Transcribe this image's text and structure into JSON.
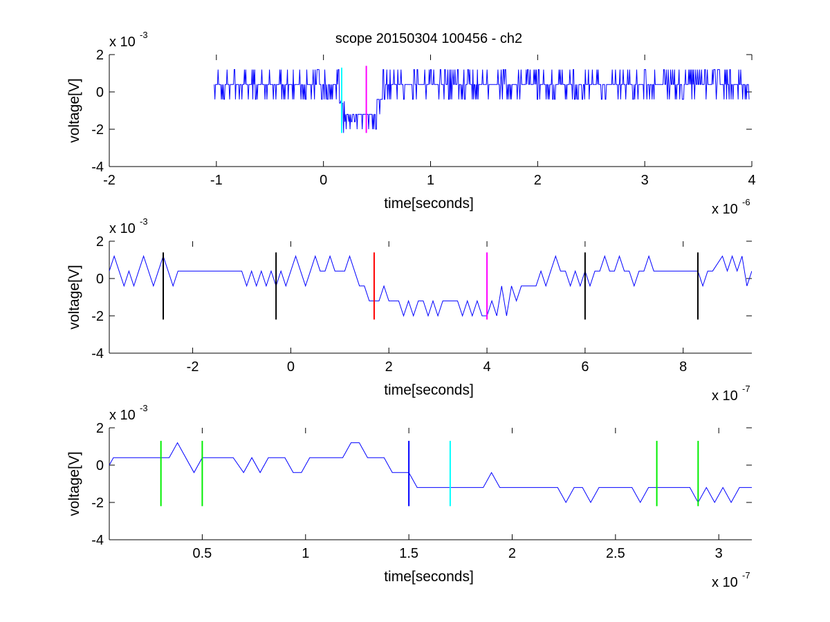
{
  "figure": {
    "title": "scope 20150304 100456 - ch2"
  },
  "chart_data": [
    {
      "type": "line",
      "title": "scope 20150304 100456 - ch2",
      "xlabel": "time[seconds]",
      "ylabel": "voltage[V]",
      "x_multiplier": "x 10",
      "x_exponent": "-6",
      "y_multiplier": "x 10",
      "y_exponent": "-3",
      "xlim": [
        -2,
        4
      ],
      "ylim": [
        -4,
        2
      ],
      "xticks": [
        -2,
        -1,
        0,
        1,
        2,
        3,
        4
      ],
      "xtick_labels": [
        "-2",
        "-1",
        "0",
        "1",
        "2",
        "3",
        "4"
      ],
      "yticks": [
        -4,
        -2,
        0,
        2
      ],
      "ytick_labels": [
        "-4",
        "-2",
        "0",
        "2"
      ],
      "series": [
        {
          "color": "#0000ff",
          "x_range": [
            -1.02,
            3.98
          ],
          "baseline": 0.4,
          "segments": [
            {
              "x": [
                -1.02,
                0.15
              ],
              "level": 0.4,
              "jitter": [
                -0.4,
                1.2
              ]
            },
            {
              "x": [
                0.15,
                0.2
              ],
              "level": -0.6,
              "jitter": [
                -2.2,
                1.2
              ]
            },
            {
              "x": [
                0.2,
                0.5
              ],
              "level": -1.2,
              "jitter": [
                -2.0,
                -1.2
              ]
            },
            {
              "x": [
                0.5,
                0.55
              ],
              "level": -0.4,
              "jitter": [
                -1.2,
                0.4
              ]
            },
            {
              "x": [
                0.55,
                3.98
              ],
              "level": 0.4,
              "jitter": [
                -0.4,
                1.2
              ]
            }
          ]
        }
      ],
      "markers": [
        {
          "x": 0.17,
          "y": [
            -2.2,
            1.3
          ],
          "color": "#00ffff"
        },
        {
          "x": 0.4,
          "y": [
            -2.2,
            1.4
          ],
          "color": "#ff00ff"
        }
      ]
    },
    {
      "type": "line",
      "xlabel": "time[seconds]",
      "ylabel": "voltage[V]",
      "x_multiplier": "x 10",
      "x_exponent": "-7",
      "y_multiplier": "x 10",
      "y_exponent": "-3",
      "xlim": [
        -3.7,
        9.4
      ],
      "ylim": [
        -4,
        2
      ],
      "xticks": [
        -2,
        0,
        2,
        4,
        6,
        8
      ],
      "xtick_labels": [
        "-2",
        "0",
        "2",
        "4",
        "6",
        "8"
      ],
      "yticks": [
        -4,
        -2,
        0,
        2
      ],
      "ytick_labels": [
        "-4",
        "-2",
        "0",
        "2"
      ],
      "series": [
        {
          "color": "#0000ff",
          "points": [
            [
              -3.7,
              0.4
            ],
            [
              -3.6,
              1.2
            ],
            [
              -3.5,
              0.4
            ],
            [
              -3.4,
              -0.4
            ],
            [
              -3.3,
              0.4
            ],
            [
              -3.2,
              -0.4
            ],
            [
              -3.1,
              0.4
            ],
            [
              -3.0,
              1.2
            ],
            [
              -2.9,
              0.4
            ],
            [
              -2.8,
              -0.4
            ],
            [
              -2.7,
              0.4
            ],
            [
              -2.6,
              1.2
            ],
            [
              -2.5,
              0.4
            ],
            [
              -2.4,
              -0.4
            ],
            [
              -2.3,
              0.4
            ],
            [
              -2.2,
              0.4
            ],
            [
              -1.0,
              0.4
            ],
            [
              -0.9,
              -0.4
            ],
            [
              -0.8,
              0.4
            ],
            [
              -0.7,
              -0.4
            ],
            [
              -0.6,
              0.4
            ],
            [
              -0.5,
              -0.4
            ],
            [
              -0.4,
              0.4
            ],
            [
              -0.3,
              -0.4
            ],
            [
              -0.2,
              0.4
            ],
            [
              -0.1,
              -0.4
            ],
            [
              0.0,
              0.4
            ],
            [
              0.1,
              1.2
            ],
            [
              0.2,
              0.4
            ],
            [
              0.3,
              -0.4
            ],
            [
              0.4,
              0.4
            ],
            [
              0.5,
              1.2
            ],
            [
              0.6,
              0.4
            ],
            [
              0.7,
              0.4
            ],
            [
              0.8,
              1.2
            ],
            [
              0.9,
              0.4
            ],
            [
              1.0,
              0.4
            ],
            [
              1.1,
              0.4
            ],
            [
              1.2,
              1.2
            ],
            [
              1.3,
              0.4
            ],
            [
              1.4,
              -0.4
            ],
            [
              1.5,
              -0.4
            ],
            [
              1.6,
              -1.2
            ],
            [
              1.7,
              -1.2
            ],
            [
              1.8,
              -1.2
            ],
            [
              1.9,
              -0.4
            ],
            [
              2.0,
              -1.2
            ],
            [
              2.1,
              -1.2
            ],
            [
              2.2,
              -1.2
            ],
            [
              2.3,
              -2.0
            ],
            [
              2.4,
              -1.2
            ],
            [
              2.5,
              -2.0
            ],
            [
              2.6,
              -1.2
            ],
            [
              2.7,
              -1.2
            ],
            [
              2.8,
              -2.0
            ],
            [
              2.9,
              -1.2
            ],
            [
              3.0,
              -2.0
            ],
            [
              3.1,
              -1.2
            ],
            [
              3.2,
              -1.2
            ],
            [
              3.3,
              -1.2
            ],
            [
              3.4,
              -1.2
            ],
            [
              3.5,
              -2.0
            ],
            [
              3.6,
              -1.2
            ],
            [
              3.7,
              -2.0
            ],
            [
              3.8,
              -1.2
            ],
            [
              3.9,
              -2.0
            ],
            [
              4.0,
              -2.0
            ],
            [
              4.1,
              -1.2
            ],
            [
              4.2,
              -2.0
            ],
            [
              4.3,
              -0.4
            ],
            [
              4.4,
              -2.0
            ],
            [
              4.5,
              -0.4
            ],
            [
              4.6,
              -1.2
            ],
            [
              4.7,
              -0.4
            ],
            [
              4.8,
              -0.4
            ],
            [
              4.9,
              -0.4
            ],
            [
              5.0,
              -0.4
            ],
            [
              5.1,
              0.4
            ],
            [
              5.2,
              -0.4
            ],
            [
              5.3,
              0.4
            ],
            [
              5.4,
              1.2
            ],
            [
              5.5,
              0.4
            ],
            [
              5.6,
              0.4
            ],
            [
              5.7,
              -0.4
            ],
            [
              5.8,
              0.4
            ],
            [
              5.9,
              -0.4
            ],
            [
              6.0,
              0.4
            ],
            [
              6.1,
              -0.4
            ],
            [
              6.2,
              0.4
            ],
            [
              6.3,
              0.4
            ],
            [
              6.4,
              1.2
            ],
            [
              6.5,
              0.4
            ],
            [
              6.6,
              0.4
            ],
            [
              6.7,
              1.2
            ],
            [
              6.8,
              0.4
            ],
            [
              6.9,
              0.4
            ],
            [
              7.0,
              -0.4
            ],
            [
              7.1,
              0.4
            ],
            [
              7.2,
              0.4
            ],
            [
              7.3,
              1.2
            ],
            [
              7.4,
              0.4
            ],
            [
              7.5,
              0.4
            ],
            [
              8.0,
              0.4
            ],
            [
              8.3,
              0.4
            ],
            [
              8.4,
              -0.4
            ],
            [
              8.5,
              0.4
            ],
            [
              8.6,
              0.4
            ],
            [
              8.8,
              1.2
            ],
            [
              8.9,
              0.4
            ],
            [
              9.0,
              1.2
            ],
            [
              9.1,
              0.4
            ],
            [
              9.2,
              1.2
            ],
            [
              9.3,
              -0.4
            ],
            [
              9.4,
              0.4
            ]
          ]
        }
      ],
      "markers": [
        {
          "x": -2.6,
          "y": [
            -2.2,
            1.4
          ],
          "color": "#000000"
        },
        {
          "x": -0.3,
          "y": [
            -2.2,
            1.4
          ],
          "color": "#000000"
        },
        {
          "x": 1.7,
          "y": [
            -2.2,
            1.4
          ],
          "color": "#ff0000"
        },
        {
          "x": 4.0,
          "y": [
            -2.2,
            1.4
          ],
          "color": "#ff00ff"
        },
        {
          "x": 6.0,
          "y": [
            -2.2,
            1.4
          ],
          "color": "#000000"
        },
        {
          "x": 8.3,
          "y": [
            -2.2,
            1.4
          ],
          "color": "#000000"
        }
      ]
    },
    {
      "type": "line",
      "xlabel": "time[seconds]",
      "ylabel": "voltage[V]",
      "x_multiplier": "x 10",
      "x_exponent": "-7",
      "y_multiplier": "x 10",
      "y_exponent": "-3",
      "xlim": [
        0.05,
        3.16
      ],
      "ylim": [
        -4,
        2
      ],
      "xticks": [
        0.5,
        1,
        1.5,
        2,
        2.5,
        3
      ],
      "xtick_labels": [
        "0.5",
        "1",
        "1.5",
        "2",
        "2.5",
        "3"
      ],
      "yticks": [
        -4,
        -2,
        0,
        2
      ],
      "ytick_labels": [
        "-4",
        "-2",
        "0",
        "2"
      ],
      "series": [
        {
          "color": "#0000ff",
          "points": [
            [
              0.05,
              0.0
            ],
            [
              0.07,
              0.4
            ],
            [
              0.34,
              0.4
            ],
            [
              0.38,
              1.2
            ],
            [
              0.46,
              -0.4
            ],
            [
              0.5,
              0.4
            ],
            [
              0.65,
              0.4
            ],
            [
              0.7,
              -0.4
            ],
            [
              0.74,
              0.4
            ],
            [
              0.78,
              -0.4
            ],
            [
              0.82,
              0.4
            ],
            [
              0.9,
              0.4
            ],
            [
              0.94,
              -0.4
            ],
            [
              0.98,
              -0.4
            ],
            [
              1.02,
              0.4
            ],
            [
              1.18,
              0.4
            ],
            [
              1.22,
              1.2
            ],
            [
              1.26,
              1.2
            ],
            [
              1.3,
              0.4
            ],
            [
              1.38,
              0.4
            ],
            [
              1.42,
              -0.4
            ],
            [
              1.5,
              -0.4
            ],
            [
              1.54,
              -1.2
            ],
            [
              1.86,
              -1.2
            ],
            [
              1.9,
              -0.4
            ],
            [
              1.94,
              -1.2
            ],
            [
              2.22,
              -1.2
            ],
            [
              2.26,
              -2.0
            ],
            [
              2.3,
              -1.2
            ],
            [
              2.34,
              -1.2
            ],
            [
              2.38,
              -2.0
            ],
            [
              2.42,
              -1.2
            ],
            [
              2.58,
              -1.2
            ],
            [
              2.62,
              -2.0
            ],
            [
              2.66,
              -1.2
            ],
            [
              2.86,
              -1.2
            ],
            [
              2.9,
              -2.0
            ],
            [
              2.94,
              -1.2
            ],
            [
              2.98,
              -2.0
            ],
            [
              3.02,
              -1.2
            ],
            [
              3.06,
              -2.0
            ],
            [
              3.1,
              -1.2
            ],
            [
              3.16,
              -1.2
            ]
          ]
        }
      ],
      "markers": [
        {
          "x": 0.3,
          "y": [
            -2.2,
            1.3
          ],
          "color": "#00ee00"
        },
        {
          "x": 0.5,
          "y": [
            -2.2,
            1.3
          ],
          "color": "#00ee00"
        },
        {
          "x": 1.5,
          "y": [
            -2.2,
            1.3
          ],
          "color": "#0000ff"
        },
        {
          "x": 1.7,
          "y": [
            -2.2,
            1.3
          ],
          "color": "#00ffff"
        },
        {
          "x": 2.7,
          "y": [
            -2.2,
            1.3
          ],
          "color": "#00ee00"
        },
        {
          "x": 2.9,
          "y": [
            -2.2,
            1.3
          ],
          "color": "#00ee00"
        }
      ]
    }
  ]
}
